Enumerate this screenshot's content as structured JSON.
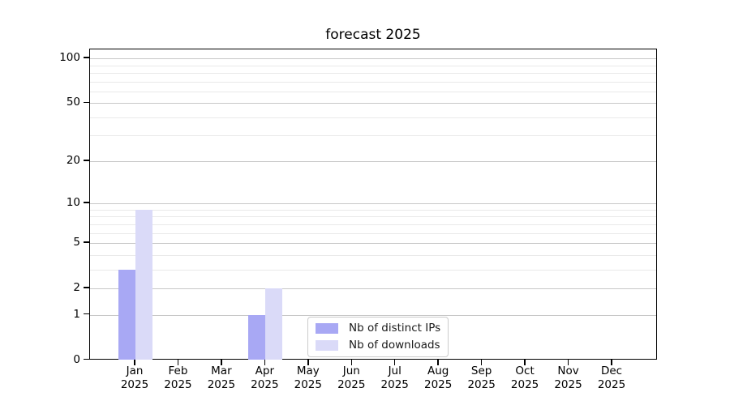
{
  "chart_data": {
    "type": "bar",
    "title": "forecast 2025",
    "categories": [
      "Jan",
      "Feb",
      "Mar",
      "Apr",
      "May",
      "Jun",
      "Jul",
      "Aug",
      "Sep",
      "Oct",
      "Nov",
      "Dec"
    ],
    "category_year": "2025",
    "series": [
      {
        "name": "Nb of distinct IPs",
        "color": "#a8a8f4",
        "values": [
          3,
          0,
          0,
          1,
          0,
          0,
          0,
          0,
          0,
          0,
          0,
          0
        ]
      },
      {
        "name": "Nb of downloads",
        "color": "#dadaf8",
        "values": [
          9,
          0,
          0,
          2,
          0,
          0,
          0,
          0,
          0,
          0,
          0,
          0
        ]
      }
    ],
    "yscale": "log(value+1)",
    "yticks": [
      0,
      1,
      2,
      5,
      10,
      20,
      50,
      100
    ],
    "yminorticks": [
      3,
      4,
      6,
      7,
      8,
      9,
      30,
      40,
      60,
      70,
      80,
      90
    ],
    "ylim": [
      0,
      115
    ],
    "xlabel": "",
    "ylabel": "",
    "grid": "horizontal-major-and-minor",
    "legend_position": "lower-center-inside"
  }
}
